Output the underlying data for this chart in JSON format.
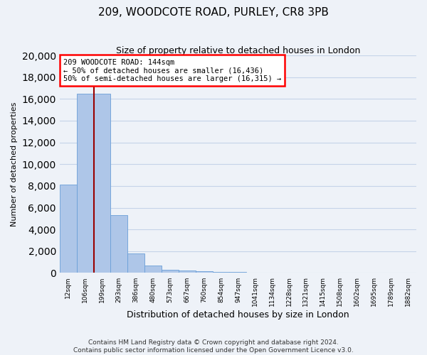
{
  "title": "209, WOODCOTE ROAD, PURLEY, CR8 3PB",
  "subtitle": "Size of property relative to detached houses in London",
  "xlabel": "Distribution of detached houses by size in London",
  "ylabel": "Number of detached properties",
  "bar_labels": [
    "12sqm",
    "106sqm",
    "199sqm",
    "293sqm",
    "386sqm",
    "480sqm",
    "573sqm",
    "667sqm",
    "760sqm",
    "854sqm",
    "947sqm",
    "1041sqm",
    "1134sqm",
    "1228sqm",
    "1321sqm",
    "1415sqm",
    "1508sqm",
    "1602sqm",
    "1695sqm",
    "1789sqm",
    "1882sqm"
  ],
  "bar_values": [
    8100,
    16500,
    16500,
    5300,
    1800,
    700,
    300,
    200,
    150,
    100,
    80,
    60,
    50,
    40,
    30,
    25,
    20,
    18,
    15,
    12,
    10
  ],
  "bar_color": "#aec6e8",
  "bar_edge_color": "#6a9fd8",
  "ylim": [
    0,
    20000
  ],
  "yticks": [
    0,
    2000,
    4000,
    6000,
    8000,
    10000,
    12000,
    14000,
    16000,
    18000,
    20000
  ],
  "annotation_line1": "209 WOODCOTE ROAD: 144sqm",
  "annotation_line2": "← 50% of detached houses are smaller (16,436)",
  "annotation_line3": "50% of semi-detached houses are larger (16,315) →",
  "footnote1": "Contains HM Land Registry data © Crown copyright and database right 2024.",
  "footnote2": "Contains public sector information licensed under the Open Government Licence v3.0.",
  "background_color": "#eef2f8",
  "grid_color": "#c5d3e8",
  "red_line_color": "#990000"
}
